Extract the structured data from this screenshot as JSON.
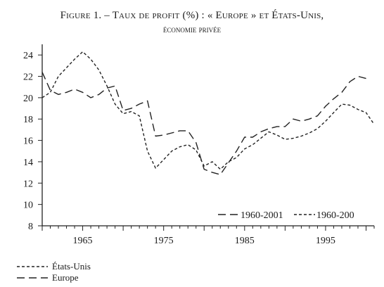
{
  "title_line1": "Figure 1. – Taux de profit (%) : « Europe » et États-Unis,",
  "title_line2": "économie privée",
  "chart_data": {
    "type": "line",
    "ylim": [
      8,
      25
    ],
    "xlim": [
      1960,
      2001
    ],
    "y_ticks": [
      "8",
      "10",
      "12",
      "14",
      "16",
      "18",
      "20",
      "22",
      "24"
    ],
    "x_ticks": [
      "1965",
      "1975",
      "1985",
      "1995"
    ],
    "inset_legend": [
      {
        "label": "1960-2001",
        "style": "long-dash"
      },
      {
        "label": "1960-200",
        "style": "short-dash"
      }
    ],
    "series": [
      {
        "name": "États-Unis",
        "style": "short-dash",
        "x": [
          1960,
          1961,
          1962,
          1963,
          1964,
          1965,
          1966,
          1967,
          1968,
          1969,
          1970,
          1971,
          1972,
          1973,
          1974,
          1975,
          1976,
          1977,
          1978,
          1979,
          1980,
          1981,
          1982,
          1983,
          1984,
          1985,
          1986,
          1987,
          1988,
          1989,
          1990,
          1991,
          1992,
          1993,
          1994,
          1995,
          1996,
          1997,
          1998,
          1999,
          2000,
          2001
        ],
        "values": [
          20.0,
          20.5,
          22.0,
          22.8,
          23.6,
          24.3,
          23.6,
          22.6,
          21.1,
          19.4,
          18.5,
          18.7,
          18.3,
          15.0,
          13.4,
          14.2,
          15.0,
          15.4,
          15.6,
          15.1,
          13.6,
          14.0,
          13.3,
          14.0,
          14.4,
          15.2,
          15.6,
          16.2,
          16.8,
          16.5,
          16.1,
          16.2,
          16.4,
          16.7,
          17.1,
          17.8,
          18.6,
          19.4,
          19.3,
          18.9,
          18.6,
          17.5
        ]
      },
      {
        "name": "Europe",
        "style": "long-dash",
        "x": [
          1960,
          1961,
          1962,
          1963,
          1964,
          1965,
          1966,
          1967,
          1968,
          1969,
          1970,
          1971,
          1972,
          1973,
          1974,
          1975,
          1976,
          1977,
          1978,
          1979,
          1980,
          1981,
          1982,
          1983,
          1984,
          1985,
          1986,
          1987,
          1988,
          1989,
          1990,
          1991,
          1992,
          1993,
          1994,
          1995,
          1996,
          1997,
          1998,
          1999,
          2000
        ],
        "values": [
          22.4,
          20.7,
          20.3,
          20.5,
          20.8,
          20.5,
          20.0,
          20.3,
          20.9,
          21.1,
          18.8,
          19.0,
          19.4,
          19.7,
          16.4,
          16.5,
          16.7,
          16.9,
          16.9,
          15.8,
          13.3,
          13.0,
          12.8,
          13.9,
          15.0,
          16.3,
          16.3,
          16.8,
          17.1,
          17.3,
          17.3,
          18.0,
          17.8,
          18.0,
          18.3,
          19.2,
          19.9,
          20.5,
          21.5,
          22.0,
          21.8
        ]
      }
    ]
  }
}
